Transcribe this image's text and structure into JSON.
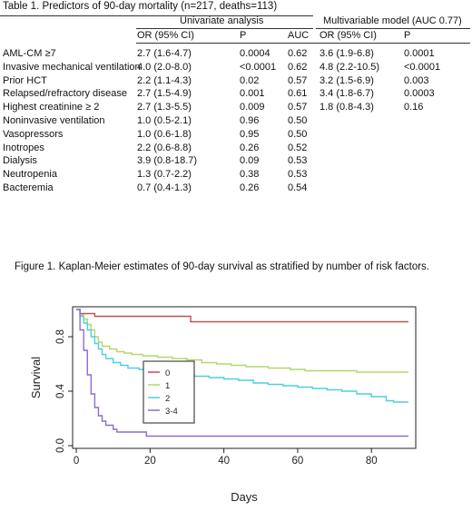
{
  "table": {
    "caption": "Table 1. Predictors of 90-day mortality (n=217, deaths=113)",
    "group_headers": {
      "univariate": "Univariate analysis",
      "multivariable": "Multivariable model (AUC 0.77)"
    },
    "column_headers": [
      "OR (95% CI)",
      "P",
      "AUC",
      "OR (95% CI)",
      "P"
    ],
    "rows": [
      {
        "label": "AML-CM ≥7",
        "uni_or": "2.7 (1.6-4.7)",
        "uni_p": "0.0004",
        "auc": "0.62",
        "multi_or": "3.6 (1.9-6.8)",
        "multi_p": "0.0001"
      },
      {
        "label": "Invasive mechanical ventilation",
        "uni_or": "4.0 (2.0-8.0)",
        "uni_p": "<0.0001",
        "auc": "0.62",
        "multi_or": "4.8 (2.2-10.5)",
        "multi_p": "<0.0001"
      },
      {
        "label": "Prior HCT",
        "uni_or": "2.2 (1.1-4.3)",
        "uni_p": "0.02",
        "auc": "0.57",
        "multi_or": "3.2 (1.5-6.9)",
        "multi_p": "0.003"
      },
      {
        "label": "Relapsed/refractory disease",
        "uni_or": "2.7 (1.5-4.9)",
        "uni_p": "0.001",
        "auc": "0.61",
        "multi_or": "3.4 (1.8-6.7)",
        "multi_p": "0.0003"
      },
      {
        "label": "Highest creatinine ≥ 2",
        "uni_or": "2.7 (1.3-5.5)",
        "uni_p": "0.009",
        "auc": "0.57",
        "multi_or": "1.8 (0.8-4.3)",
        "multi_p": "0.16"
      },
      {
        "label": "Noninvasive ventilation",
        "uni_or": "1.0 (0.5-2.1)",
        "uni_p": "0.96",
        "auc": "0.50",
        "multi_or": "",
        "multi_p": ""
      },
      {
        "label": "Vasopressors",
        "uni_or": "1.0 (0.6-1.8)",
        "uni_p": "0.95",
        "auc": "0.50",
        "multi_or": "",
        "multi_p": ""
      },
      {
        "label": "Inotropes",
        "uni_or": "2.2 (0.6-8.8)",
        "uni_p": "0.26",
        "auc": "0.52",
        "multi_or": "",
        "multi_p": ""
      },
      {
        "label": "Dialysis",
        "uni_or": "3.9 (0.8-18.7)",
        "uni_p": "0.09",
        "auc": "0.53",
        "multi_or": "",
        "multi_p": ""
      },
      {
        "label": "Neutropenia",
        "uni_or": "1.3 (0.7-2.2)",
        "uni_p": "0.38",
        "auc": "0.53",
        "multi_or": "",
        "multi_p": ""
      },
      {
        "label": "Bacteremia",
        "uni_or": "0.7 (0.4-1.3)",
        "uni_p": "0.26",
        "auc": "0.54",
        "multi_or": "",
        "multi_p": ""
      }
    ]
  },
  "figure": {
    "caption": "Figure 1. Kaplan-Meier estimates of 90-day survival as stratified by number of risk factors."
  },
  "chart_data": {
    "type": "line",
    "step": true,
    "title": "",
    "xlabel": "Days",
    "ylabel": "Survival",
    "xlim": [
      -1,
      92
    ],
    "ylim": [
      -0.02,
      1.02
    ],
    "x_ticks": [
      0,
      20,
      40,
      60,
      80
    ],
    "x_tick_labels": [
      "0",
      "20",
      "40",
      "60",
      "80"
    ],
    "y_ticks": [
      0.0,
      0.4,
      0.8
    ],
    "y_tick_labels": [
      "0.0",
      "0.4",
      "0.8"
    ],
    "grid": false,
    "legend_position": "center-left",
    "series": [
      {
        "name": "0",
        "color": "#c0504d",
        "points": [
          [
            0,
            1.0
          ],
          [
            1,
            0.97
          ],
          [
            4,
            0.97
          ],
          [
            5,
            0.95
          ],
          [
            30,
            0.95
          ],
          [
            31,
            0.91
          ],
          [
            90,
            0.91
          ]
        ]
      },
      {
        "name": "1",
        "color": "#b5d56b",
        "points": [
          [
            0,
            1.0
          ],
          [
            1,
            0.96
          ],
          [
            2,
            0.93
          ],
          [
            3,
            0.89
          ],
          [
            4,
            0.85
          ],
          [
            5,
            0.8
          ],
          [
            6,
            0.76
          ],
          [
            7,
            0.73
          ],
          [
            9,
            0.71
          ],
          [
            11,
            0.69
          ],
          [
            13,
            0.68
          ],
          [
            15,
            0.67
          ],
          [
            18,
            0.66
          ],
          [
            22,
            0.65
          ],
          [
            26,
            0.64
          ],
          [
            30,
            0.63
          ],
          [
            34,
            0.61
          ],
          [
            38,
            0.6
          ],
          [
            42,
            0.59
          ],
          [
            46,
            0.58
          ],
          [
            52,
            0.57
          ],
          [
            58,
            0.56
          ],
          [
            62,
            0.55
          ],
          [
            70,
            0.55
          ],
          [
            76,
            0.54
          ],
          [
            90,
            0.54
          ]
        ]
      },
      {
        "name": "2",
        "color": "#4dcfe0",
        "points": [
          [
            0,
            1.0
          ],
          [
            1,
            0.95
          ],
          [
            2,
            0.9
          ],
          [
            3,
            0.85
          ],
          [
            4,
            0.8
          ],
          [
            5,
            0.75
          ],
          [
            6,
            0.71
          ],
          [
            7,
            0.67
          ],
          [
            8,
            0.64
          ],
          [
            10,
            0.61
          ],
          [
            12,
            0.59
          ],
          [
            14,
            0.57
          ],
          [
            17,
            0.56
          ],
          [
            20,
            0.54
          ],
          [
            24,
            0.53
          ],
          [
            28,
            0.52
          ],
          [
            32,
            0.51
          ],
          [
            36,
            0.5
          ],
          [
            40,
            0.49
          ],
          [
            44,
            0.48
          ],
          [
            48,
            0.46
          ],
          [
            52,
            0.45
          ],
          [
            56,
            0.44
          ],
          [
            60,
            0.43
          ],
          [
            64,
            0.42
          ],
          [
            68,
            0.41
          ],
          [
            72,
            0.4
          ],
          [
            76,
            0.38
          ],
          [
            80,
            0.36
          ],
          [
            84,
            0.33
          ],
          [
            86,
            0.32
          ],
          [
            90,
            0.32
          ]
        ]
      },
      {
        "name": "3-4",
        "color": "#8e6ccf",
        "points": [
          [
            0,
            1.0
          ],
          [
            1,
            0.85
          ],
          [
            2,
            0.7
          ],
          [
            3,
            0.52
          ],
          [
            4,
            0.38
          ],
          [
            5,
            0.28
          ],
          [
            6,
            0.22
          ],
          [
            7,
            0.18
          ],
          [
            8,
            0.15
          ],
          [
            10,
            0.12
          ],
          [
            11,
            0.1
          ],
          [
            18,
            0.1
          ],
          [
            19,
            0.07
          ],
          [
            90,
            0.07
          ]
        ]
      }
    ]
  }
}
